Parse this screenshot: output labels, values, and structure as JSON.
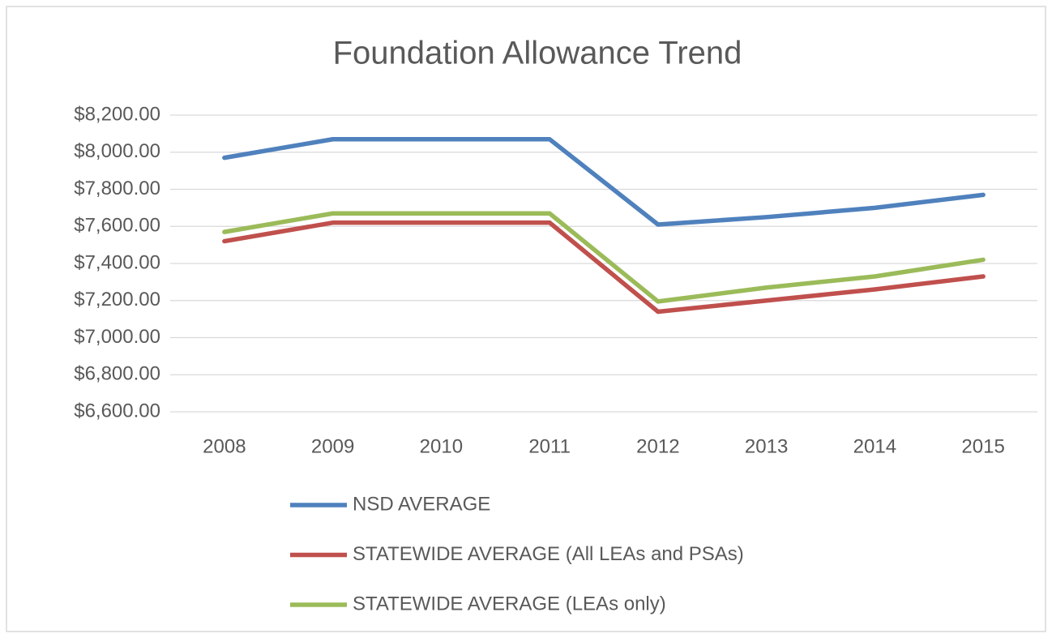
{
  "chart_data": {
    "type": "line",
    "title": "Foundation Allowance Trend",
    "categories": [
      "2008",
      "2009",
      "2010",
      "2011",
      "2012",
      "2013",
      "2014",
      "2015"
    ],
    "series": [
      {
        "name": "NSD AVERAGE",
        "color": "#4f81bd",
        "values": [
          7970,
          8070,
          8070,
          8070,
          7610,
          7650,
          7700,
          7770
        ]
      },
      {
        "name": "STATEWIDE AVERAGE (All LEAs and PSAs)",
        "color": "#c0504d",
        "values": [
          7520,
          7620,
          7620,
          7620,
          7140,
          7200,
          7260,
          7330
        ]
      },
      {
        "name": "STATEWIDE AVERAGE (LEAs only)",
        "color": "#9bbb59",
        "values": [
          7570,
          7670,
          7670,
          7670,
          7195,
          7270,
          7330,
          7420
        ]
      }
    ],
    "ylim": [
      6600,
      8200
    ],
    "yticks": [
      {
        "value": 6600,
        "label": "$6,600.00"
      },
      {
        "value": 6800,
        "label": "$6,800.00"
      },
      {
        "value": 7000,
        "label": "$7,000.00"
      },
      {
        "value": 7200,
        "label": "$7,200.00"
      },
      {
        "value": 7400,
        "label": "$7,400.00"
      },
      {
        "value": 7600,
        "label": "$7,600.00"
      },
      {
        "value": 7800,
        "label": "$7,800.00"
      },
      {
        "value": 8000,
        "label": "$8,000.00"
      },
      {
        "value": 8200,
        "label": "$8,200.00"
      }
    ],
    "grid": true,
    "legend": "bottom"
  }
}
